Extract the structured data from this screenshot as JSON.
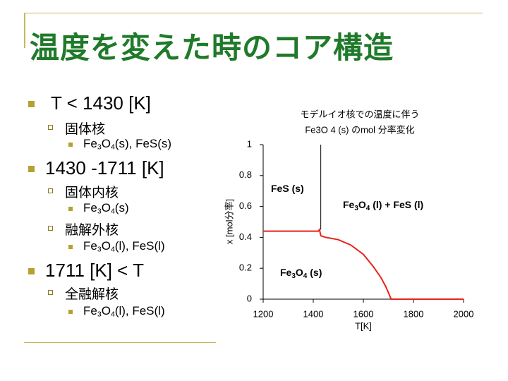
{
  "slide": {
    "title": "温度を変えた時のコア構造",
    "bullets": [
      {
        "level": 1,
        "parts": [
          "T < 1430 [K]"
        ]
      },
      {
        "level": 2,
        "parts": [
          "固体核"
        ]
      },
      {
        "level": 3,
        "parts": [
          "Fe",
          "3",
          "O",
          "4",
          "(s), FeS(s)"
        ]
      },
      {
        "level": 1,
        "parts": [
          "1430 -1711 [K]"
        ]
      },
      {
        "level": 2,
        "parts": [
          "固体内核"
        ]
      },
      {
        "level": 3,
        "parts": [
          "Fe",
          "3",
          "O",
          "4",
          "(s)"
        ]
      },
      {
        "level": 2,
        "parts": [
          "融解外核"
        ]
      },
      {
        "level": 3,
        "parts": [
          "Fe",
          "3",
          "O",
          "4",
          "(l), FeS(l)"
        ]
      },
      {
        "level": 1,
        "parts": [
          "1711 [K] < T"
        ]
      },
      {
        "level": 2,
        "parts": [
          "全融解核"
        ]
      },
      {
        "level": 3,
        "parts": [
          "Fe",
          "3",
          "O",
          "4",
          "(l), FeS(l)"
        ]
      }
    ]
  },
  "chart_data": {
    "type": "line",
    "title": [
      "モデルイオ核での温度に伴う",
      "Fe3O 4 (s) のmol 分率変化"
    ],
    "x_label": "T[K]",
    "y_label": "x [mol分率]",
    "x": [
      1200,
      1300,
      1400,
      1420,
      1425,
      1430,
      1450,
      1500,
      1550,
      1600,
      1640,
      1670,
      1690,
      1711,
      1800,
      2000
    ],
    "series": [
      {
        "color": "#e8231a",
        "values": [
          0.44,
          0.44,
          0.44,
          0.44,
          0.45,
          0.41,
          0.4,
          0.385,
          0.35,
          0.29,
          0.21,
          0.14,
          0.08,
          0,
          0,
          0
        ]
      }
    ],
    "boundary_x": 1430,
    "xlim": [
      1200,
      2000
    ],
    "xticks": [
      1200,
      1400,
      1600,
      1800,
      2000
    ],
    "ylim": [
      0,
      1
    ],
    "yticks": [
      0,
      0.2,
      0.4,
      0.6,
      0.8,
      1
    ],
    "annotations": [
      [
        "FeS (s)"
      ],
      [
        "Fe",
        "3",
        "O",
        "4",
        " (l) + FeS (l)"
      ],
      [
        "Fe",
        "3",
        "O",
        "4",
        " (s)"
      ]
    ]
  }
}
